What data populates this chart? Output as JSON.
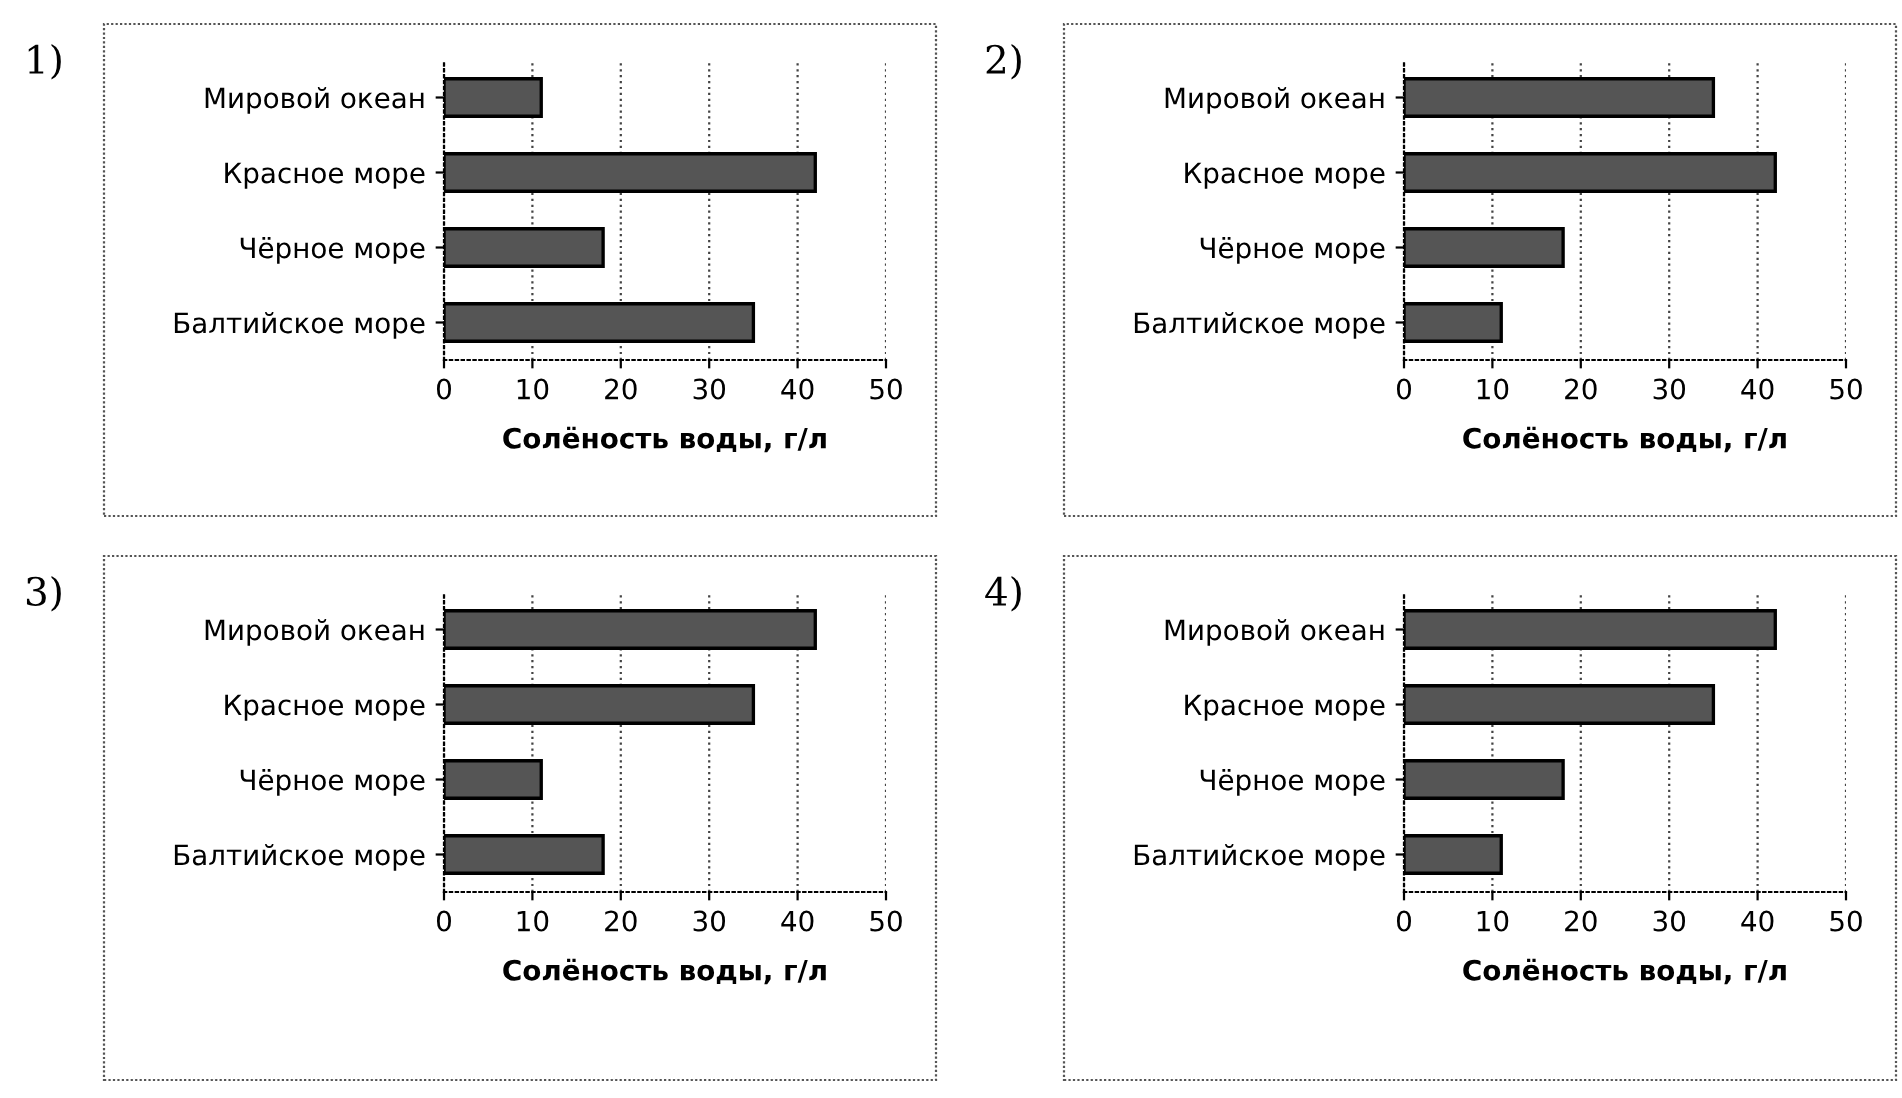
{
  "chart_data": [
    {
      "type": "bar",
      "orientation": "horizontal",
      "title": "1)",
      "xlabel": "Солёность воды, г/л",
      "categories": [
        "Мировой океан",
        "Красное море",
        "Чёрное море",
        "Балтийское море"
      ],
      "values": [
        11,
        42,
        18,
        35
      ],
      "color": "#555555",
      "xlim": [
        0,
        50
      ],
      "xticks": [
        0,
        10,
        20,
        30,
        40,
        50
      ],
      "grid": "x"
    },
    {
      "type": "bar",
      "orientation": "horizontal",
      "title": "2)",
      "xlabel": "Солёность воды, г/л",
      "categories": [
        "Мировой океан",
        "Красное море",
        "Чёрное море",
        "Балтийское море"
      ],
      "values": [
        35,
        42,
        18,
        11
      ],
      "color": "#555555",
      "xlim": [
        0,
        50
      ],
      "xticks": [
        0,
        10,
        20,
        30,
        40,
        50
      ],
      "grid": "x"
    },
    {
      "type": "bar",
      "orientation": "horizontal",
      "title": "3)",
      "xlabel": "Солёность воды, г/л",
      "categories": [
        "Мировой океан",
        "Красное море",
        "Чёрное море",
        "Балтийское море"
      ],
      "values": [
        42,
        35,
        11,
        18
      ],
      "color": "#555555",
      "xlim": [
        0,
        50
      ],
      "xticks": [
        0,
        10,
        20,
        30,
        40,
        50
      ],
      "grid": "x"
    },
    {
      "type": "bar",
      "orientation": "horizontal",
      "title": "4)",
      "xlabel": "Солёность воды, г/л",
      "categories": [
        "Мировой океан",
        "Красное море",
        "Чёрное море",
        "Балтийское море"
      ],
      "values": [
        42,
        35,
        18,
        11
      ],
      "color": "#555555",
      "xlim": [
        0,
        50
      ],
      "xticks": [
        0,
        10,
        20,
        30,
        40,
        50
      ],
      "grid": "x"
    }
  ]
}
